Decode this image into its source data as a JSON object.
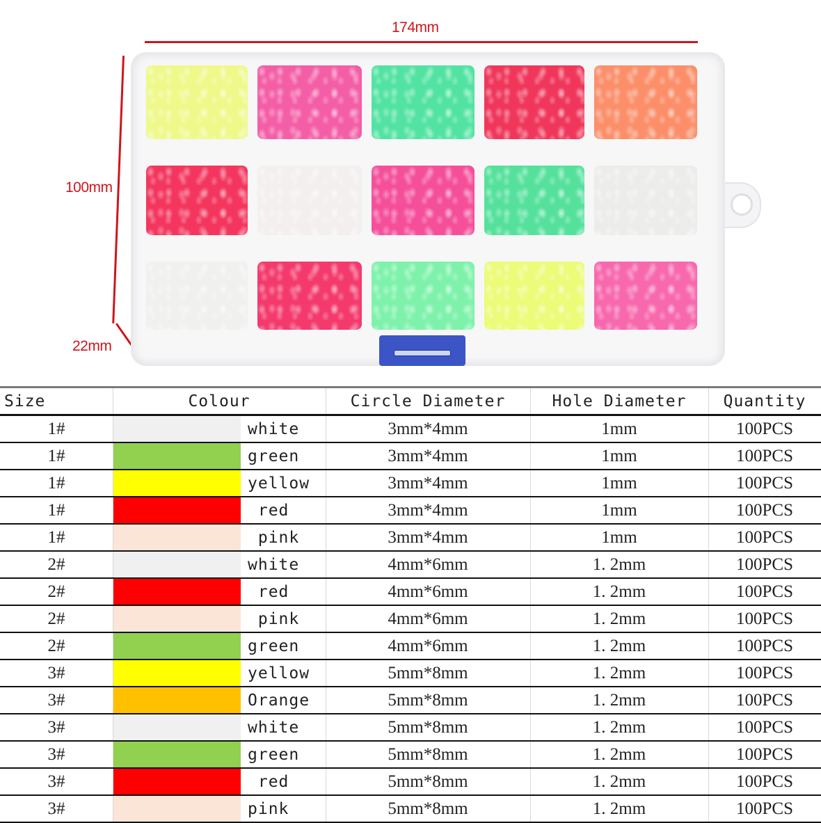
{
  "dimensions": {
    "length": "174mm",
    "width": "100mm",
    "height": "22mm",
    "line_color": "#d0141c"
  },
  "box": {
    "compartments": [
      {
        "row": 1,
        "col": 1,
        "bead_color": "#eef98a"
      },
      {
        "row": 1,
        "col": 2,
        "bead_color": "#f45ea6"
      },
      {
        "row": 1,
        "col": 3,
        "bead_color": "#52e3a2"
      },
      {
        "row": 1,
        "col": 4,
        "bead_color": "#f0365a"
      },
      {
        "row": 1,
        "col": 5,
        "bead_color": "#fc8f6a"
      },
      {
        "row": 2,
        "col": 1,
        "bead_color": "#f4365e"
      },
      {
        "row": 2,
        "col": 2,
        "bead_color": "#f3efee"
      },
      {
        "row": 2,
        "col": 3,
        "bead_color": "#f54f9a"
      },
      {
        "row": 2,
        "col": 4,
        "bead_color": "#55e19c"
      },
      {
        "row": 2,
        "col": 5,
        "bead_color": "#ececea"
      },
      {
        "row": 3,
        "col": 1,
        "bead_color": "#f0f1ee"
      },
      {
        "row": 3,
        "col": 2,
        "bead_color": "#f43a6c"
      },
      {
        "row": 3,
        "col": 3,
        "bead_color": "#7ef2ab"
      },
      {
        "row": 3,
        "col": 4,
        "bead_color": "#ecfb78"
      },
      {
        "row": 3,
        "col": 5,
        "bead_color": "#f868ad"
      }
    ],
    "latch_color": "#3b55c6"
  },
  "table": {
    "headers": {
      "size": "Size",
      "colour": "Colour",
      "circle": "Circle Diameter",
      "hole": "Hole Diameter",
      "quantity": "Quantity"
    },
    "rows": [
      {
        "size": "1#",
        "swatch": "#f0f0f0",
        "colour": "white",
        "circle": "3mm*4mm",
        "hole": "1mm",
        "quantity": "100PCS"
      },
      {
        "size": "1#",
        "swatch": "#92d050",
        "colour": "green",
        "circle": "3mm*4mm",
        "hole": "1mm",
        "quantity": "100PCS"
      },
      {
        "size": "1#",
        "swatch": "#ffff00",
        "colour": "yellow",
        "circle": "3mm*4mm",
        "hole": "1mm",
        "quantity": "100PCS"
      },
      {
        "size": "1#",
        "swatch": "#ff0000",
        "colour": " red",
        "circle": "3mm*4mm",
        "hole": "1mm",
        "quantity": "100PCS"
      },
      {
        "size": "1#",
        "swatch": "#fbe5d6",
        "colour": " pink",
        "circle": "3mm*4mm",
        "hole": "1mm",
        "quantity": "100PCS"
      },
      {
        "size": "2#",
        "swatch": "#f0f0f0",
        "colour": "white",
        "circle": "4mm*6mm",
        "hole": "1. 2mm",
        "quantity": "100PCS"
      },
      {
        "size": "2#",
        "swatch": "#ff0000",
        "colour": " red",
        "circle": "4mm*6mm",
        "hole": "1. 2mm",
        "quantity": "100PCS"
      },
      {
        "size": "2#",
        "swatch": "#fbe5d6",
        "colour": " pink",
        "circle": "4mm*6mm",
        "hole": "1. 2mm",
        "quantity": "100PCS"
      },
      {
        "size": "2#",
        "swatch": "#92d050",
        "colour": "green",
        "circle": "4mm*6mm",
        "hole": "1. 2mm",
        "quantity": "100PCS"
      },
      {
        "size": "3#",
        "swatch": "#ffff00",
        "colour": "yellow",
        "circle": "5mm*8mm",
        "hole": "1. 2mm",
        "quantity": "100PCS"
      },
      {
        "size": "3#",
        "swatch": "#ffc000",
        "colour": "Orange",
        "circle": "5mm*8mm",
        "hole": "1. 2mm",
        "quantity": "100PCS"
      },
      {
        "size": "3#",
        "swatch": "#f0f0f0",
        "colour": "white",
        "circle": "5mm*8mm",
        "hole": "1. 2mm",
        "quantity": "100PCS"
      },
      {
        "size": "3#",
        "swatch": "#92d050",
        "colour": "green",
        "circle": "5mm*8mm",
        "hole": "1. 2mm",
        "quantity": "100PCS"
      },
      {
        "size": "3#",
        "swatch": "#ff0000",
        "colour": " red",
        "circle": "5mm*8mm",
        "hole": "1. 2mm",
        "quantity": "100PCS"
      },
      {
        "size": "3#",
        "swatch": "#fbe5d6",
        "colour": "pink",
        "circle": "5mm*8mm",
        "hole": "1. 2mm",
        "quantity": "100PCS"
      }
    ]
  }
}
